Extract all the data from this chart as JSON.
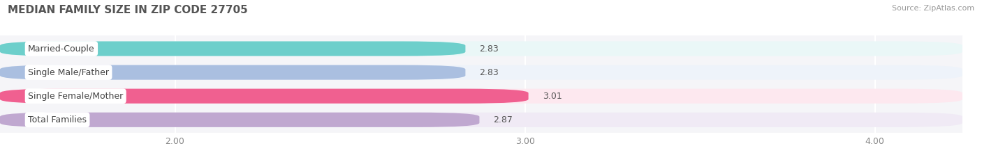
{
  "title": "MEDIAN FAMILY SIZE IN ZIP CODE 27705",
  "source": "Source: ZipAtlas.com",
  "categories": [
    "Married-Couple",
    "Single Male/Father",
    "Single Female/Mother",
    "Total Families"
  ],
  "values": [
    2.83,
    2.83,
    3.01,
    2.87
  ],
  "bar_colors": [
    "#6dcfcb",
    "#aabfe0",
    "#f06090",
    "#c0a8d0"
  ],
  "bar_bg_colors": [
    "#eaf7f7",
    "#eef3fa",
    "#fde8ef",
    "#f0eaf5"
  ],
  "xmin": 1.5,
  "xmax": 4.25,
  "xticks": [
    2.0,
    3.0,
    4.0
  ],
  "xtick_labels": [
    "2.00",
    "3.00",
    "4.00"
  ],
  "value_fontsize": 9,
  "label_fontsize": 9,
  "title_fontsize": 11,
  "background_color": "#ffffff",
  "plot_bg_color": "#f5f5f8"
}
